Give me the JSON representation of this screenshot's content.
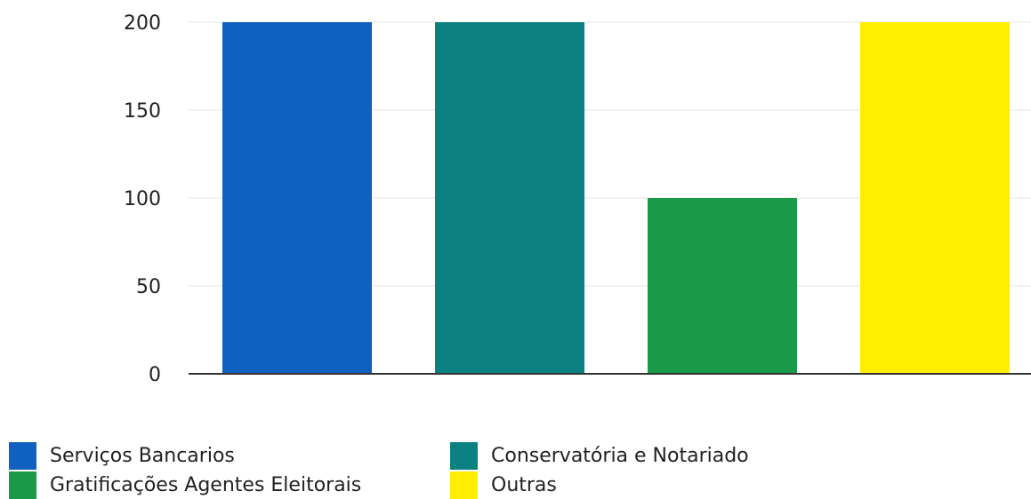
{
  "chart_data": {
    "type": "bar",
    "categories": [
      "Serviços Bancarios",
      "Conservatória e Notariado",
      "Gratificações Agentes Eleitorais",
      "Outras"
    ],
    "values": [
      200,
      200,
      100,
      200
    ],
    "colors": [
      "#1060c0",
      "#0a8080",
      "#1a9a48",
      "#ffee00"
    ],
    "ylim": [
      0,
      200
    ],
    "yticks": [
      0,
      50,
      100,
      150,
      200
    ],
    "ytick_labels": [
      "0",
      "50",
      "100",
      "150",
      "200"
    ],
    "grid": true,
    "legend_position": "bottom"
  },
  "legend": {
    "items": [
      {
        "label": "Serviços Bancarios",
        "color": "#1060c0"
      },
      {
        "label": "Conservatória e Notariado",
        "color": "#0a8080"
      },
      {
        "label": "Gratificações Agentes Eleitorais",
        "color": "#1a9a48"
      },
      {
        "label": "Outras",
        "color": "#ffee00"
      }
    ]
  }
}
